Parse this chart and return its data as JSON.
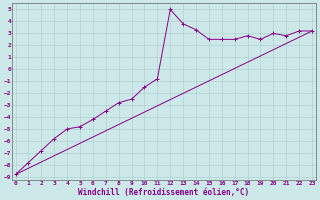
{
  "xlabel": "Windchill (Refroidissement éolien,°C)",
  "bg_color": "#cce8e8",
  "grid_color": "#aacccc",
  "line_color": "#880088",
  "spine_color": "#666666",
  "x_ticks": [
    0,
    1,
    2,
    3,
    4,
    5,
    6,
    7,
    8,
    9,
    10,
    11,
    12,
    13,
    14,
    15,
    16,
    17,
    18,
    19,
    20,
    21,
    22,
    23
  ],
  "y_ticks": [
    5,
    4,
    3,
    2,
    1,
    0,
    -1,
    -2,
    -3,
    -4,
    -5,
    -6,
    -7,
    -8,
    -9
  ],
  "xlim": [
    -0.3,
    23.3
  ],
  "ylim": [
    -9.3,
    5.5
  ],
  "curve1_x": [
    0,
    1,
    2,
    3,
    4,
    5,
    6,
    7,
    8,
    9,
    10,
    11,
    12,
    13,
    14,
    15,
    16,
    17,
    18,
    19,
    20,
    21,
    22,
    23
  ],
  "curve1_y": [
    -8.8,
    -7.8,
    -6.8,
    -5.8,
    -5.0,
    -4.8,
    -4.2,
    -3.5,
    -2.8,
    -2.5,
    -1.5,
    -0.8,
    5.0,
    3.8,
    3.3,
    2.5,
    2.5,
    2.5,
    2.8,
    2.5,
    3.0,
    2.8,
    3.2,
    3.2
  ],
  "curve2_x": [
    0,
    23
  ],
  "curve2_y": [
    -8.8,
    3.2
  ],
  "xlabel_fontsize": 5.5,
  "tick_fontsize": 4.5
}
